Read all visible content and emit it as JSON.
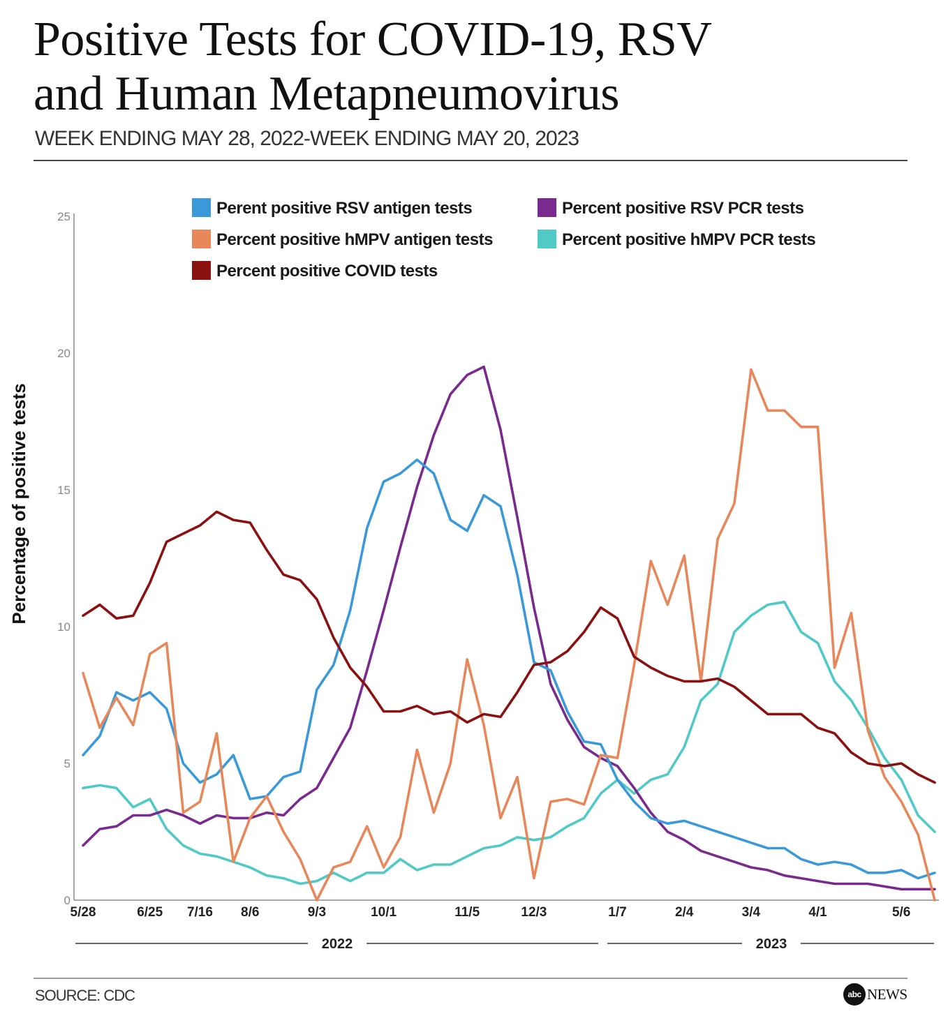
{
  "header": {
    "title_line1": "Positive Tests for COVID-19, RSV",
    "title_line2": "and Human Metapneumovirus",
    "subtitle": "WEEK ENDING MAY 28, 2022-WEEK ENDING MAY 20, 2023"
  },
  "footer": {
    "source": "SOURCE: CDC",
    "logo_mark": "abc",
    "logo_text": "NEWS"
  },
  "chart_data": {
    "type": "line",
    "title": "Positive Tests for COVID-19, RSV and Human Metapneumovirus",
    "subtitle": "WEEK ENDING MAY 28, 2022-WEEK ENDING MAY 20, 2023",
    "ylabel": "Percentage of positive tests",
    "xlabel": "",
    "ylim": [
      0,
      25
    ],
    "yticks": [
      0,
      5,
      10,
      15,
      20,
      25
    ],
    "grid": false,
    "legend_position": "top",
    "x_tick_labels": [
      {
        "label": "5/28",
        "week": 0
      },
      {
        "label": "6/25",
        "week": 4
      },
      {
        "label": "7/16",
        "week": 7
      },
      {
        "label": "8/6",
        "week": 10
      },
      {
        "label": "9/3",
        "week": 14
      },
      {
        "label": "10/1",
        "week": 18
      },
      {
        "label": "11/5",
        "week": 23
      },
      {
        "label": "12/3",
        "week": 27
      },
      {
        "label": "1/7",
        "week": 32
      },
      {
        "label": "2/4",
        "week": 36
      },
      {
        "label": "3/4",
        "week": 40
      },
      {
        "label": "4/1",
        "week": 44
      },
      {
        "label": "5/6",
        "week": 49
      }
    ],
    "year_groups": [
      {
        "label": "2022",
        "start_week": 0,
        "end_week": 31
      },
      {
        "label": "2023",
        "start_week": 32,
        "end_week": 51
      }
    ],
    "series": [
      {
        "name": "Perent positive RSV antigen tests",
        "color": "#3a9ad9",
        "values": [
          5.3,
          6.0,
          7.6,
          7.3,
          7.6,
          7.0,
          5.0,
          4.3,
          4.6,
          5.3,
          3.7,
          3.8,
          4.5,
          4.7,
          7.7,
          8.6,
          10.6,
          13.6,
          15.3,
          15.6,
          16.1,
          15.6,
          13.9,
          13.5,
          14.8,
          14.4,
          11.9,
          8.7,
          8.4,
          6.9,
          5.8,
          5.7,
          4.4,
          3.6,
          3.0,
          2.8,
          2.9,
          2.7,
          2.5,
          2.3,
          2.1,
          1.9,
          1.9,
          1.5,
          1.3,
          1.4,
          1.3,
          1.0,
          1.0,
          1.1,
          0.8,
          1.0
        ]
      },
      {
        "name": "Percent positive hMPV antigen tests",
        "color": "#e8875a",
        "values": [
          8.3,
          6.3,
          7.4,
          6.4,
          9.0,
          9.4,
          3.2,
          3.6,
          6.1,
          1.4,
          3.0,
          3.8,
          2.5,
          1.5,
          0.0,
          1.2,
          1.4,
          2.7,
          1.2,
          2.3,
          5.5,
          3.2,
          5.0,
          8.8,
          6.4,
          3.0,
          4.5,
          0.8,
          3.6,
          3.7,
          3.5,
          5.3,
          5.2,
          8.6,
          12.4,
          10.8,
          12.6,
          8.0,
          13.2,
          14.5,
          19.4,
          17.9,
          17.9,
          17.3,
          17.3,
          8.5,
          10.5,
          6.2,
          4.5,
          3.6,
          2.4,
          0.0
        ]
      },
      {
        "name": "Percent positive COVID tests",
        "color": "#8b1010",
        "values": [
          10.4,
          10.8,
          10.3,
          10.4,
          11.6,
          13.1,
          13.4,
          13.7,
          14.2,
          13.9,
          13.8,
          12.8,
          11.9,
          11.7,
          11.0,
          9.6,
          8.5,
          7.8,
          6.9,
          6.9,
          7.1,
          6.8,
          6.9,
          6.5,
          6.8,
          6.7,
          7.6,
          8.6,
          8.7,
          9.1,
          9.8,
          10.7,
          10.3,
          8.9,
          8.5,
          8.2,
          8.0,
          8.0,
          8.1,
          7.8,
          7.3,
          6.8,
          6.8,
          6.8,
          6.3,
          6.1,
          5.4,
          5.0,
          4.9,
          5.0,
          4.6,
          4.3
        ]
      },
      {
        "name": "Percent positive RSV PCR tests",
        "color": "#7a2a8e",
        "values": [
          2.0,
          2.6,
          2.7,
          3.1,
          3.1,
          3.3,
          3.1,
          2.8,
          3.1,
          3.0,
          3.0,
          3.2,
          3.1,
          3.7,
          4.1,
          5.2,
          6.3,
          8.4,
          10.6,
          12.9,
          15.1,
          17.0,
          18.5,
          19.2,
          19.5,
          17.2,
          14.0,
          10.7,
          7.9,
          6.6,
          5.6,
          5.2,
          4.9,
          4.1,
          3.2,
          2.5,
          2.2,
          1.8,
          1.6,
          1.4,
          1.2,
          1.1,
          0.9,
          0.8,
          0.7,
          0.6,
          0.6,
          0.6,
          0.5,
          0.4,
          0.4,
          0.4
        ]
      },
      {
        "name": "Percent positive hMPV PCR tests",
        "color": "#4fcac7",
        "values": [
          4.1,
          4.2,
          4.1,
          3.4,
          3.7,
          2.6,
          2.0,
          1.7,
          1.6,
          1.4,
          1.2,
          0.9,
          0.8,
          0.6,
          0.7,
          1.0,
          0.7,
          1.0,
          1.0,
          1.5,
          1.1,
          1.3,
          1.3,
          1.6,
          1.9,
          2.0,
          2.3,
          2.2,
          2.3,
          2.7,
          3.0,
          3.9,
          4.4,
          3.9,
          4.4,
          4.6,
          5.6,
          7.3,
          7.9,
          9.8,
          10.4,
          10.8,
          10.9,
          9.8,
          9.4,
          8.0,
          7.3,
          6.3,
          5.2,
          4.4,
          3.1,
          2.5
        ]
      }
    ]
  }
}
